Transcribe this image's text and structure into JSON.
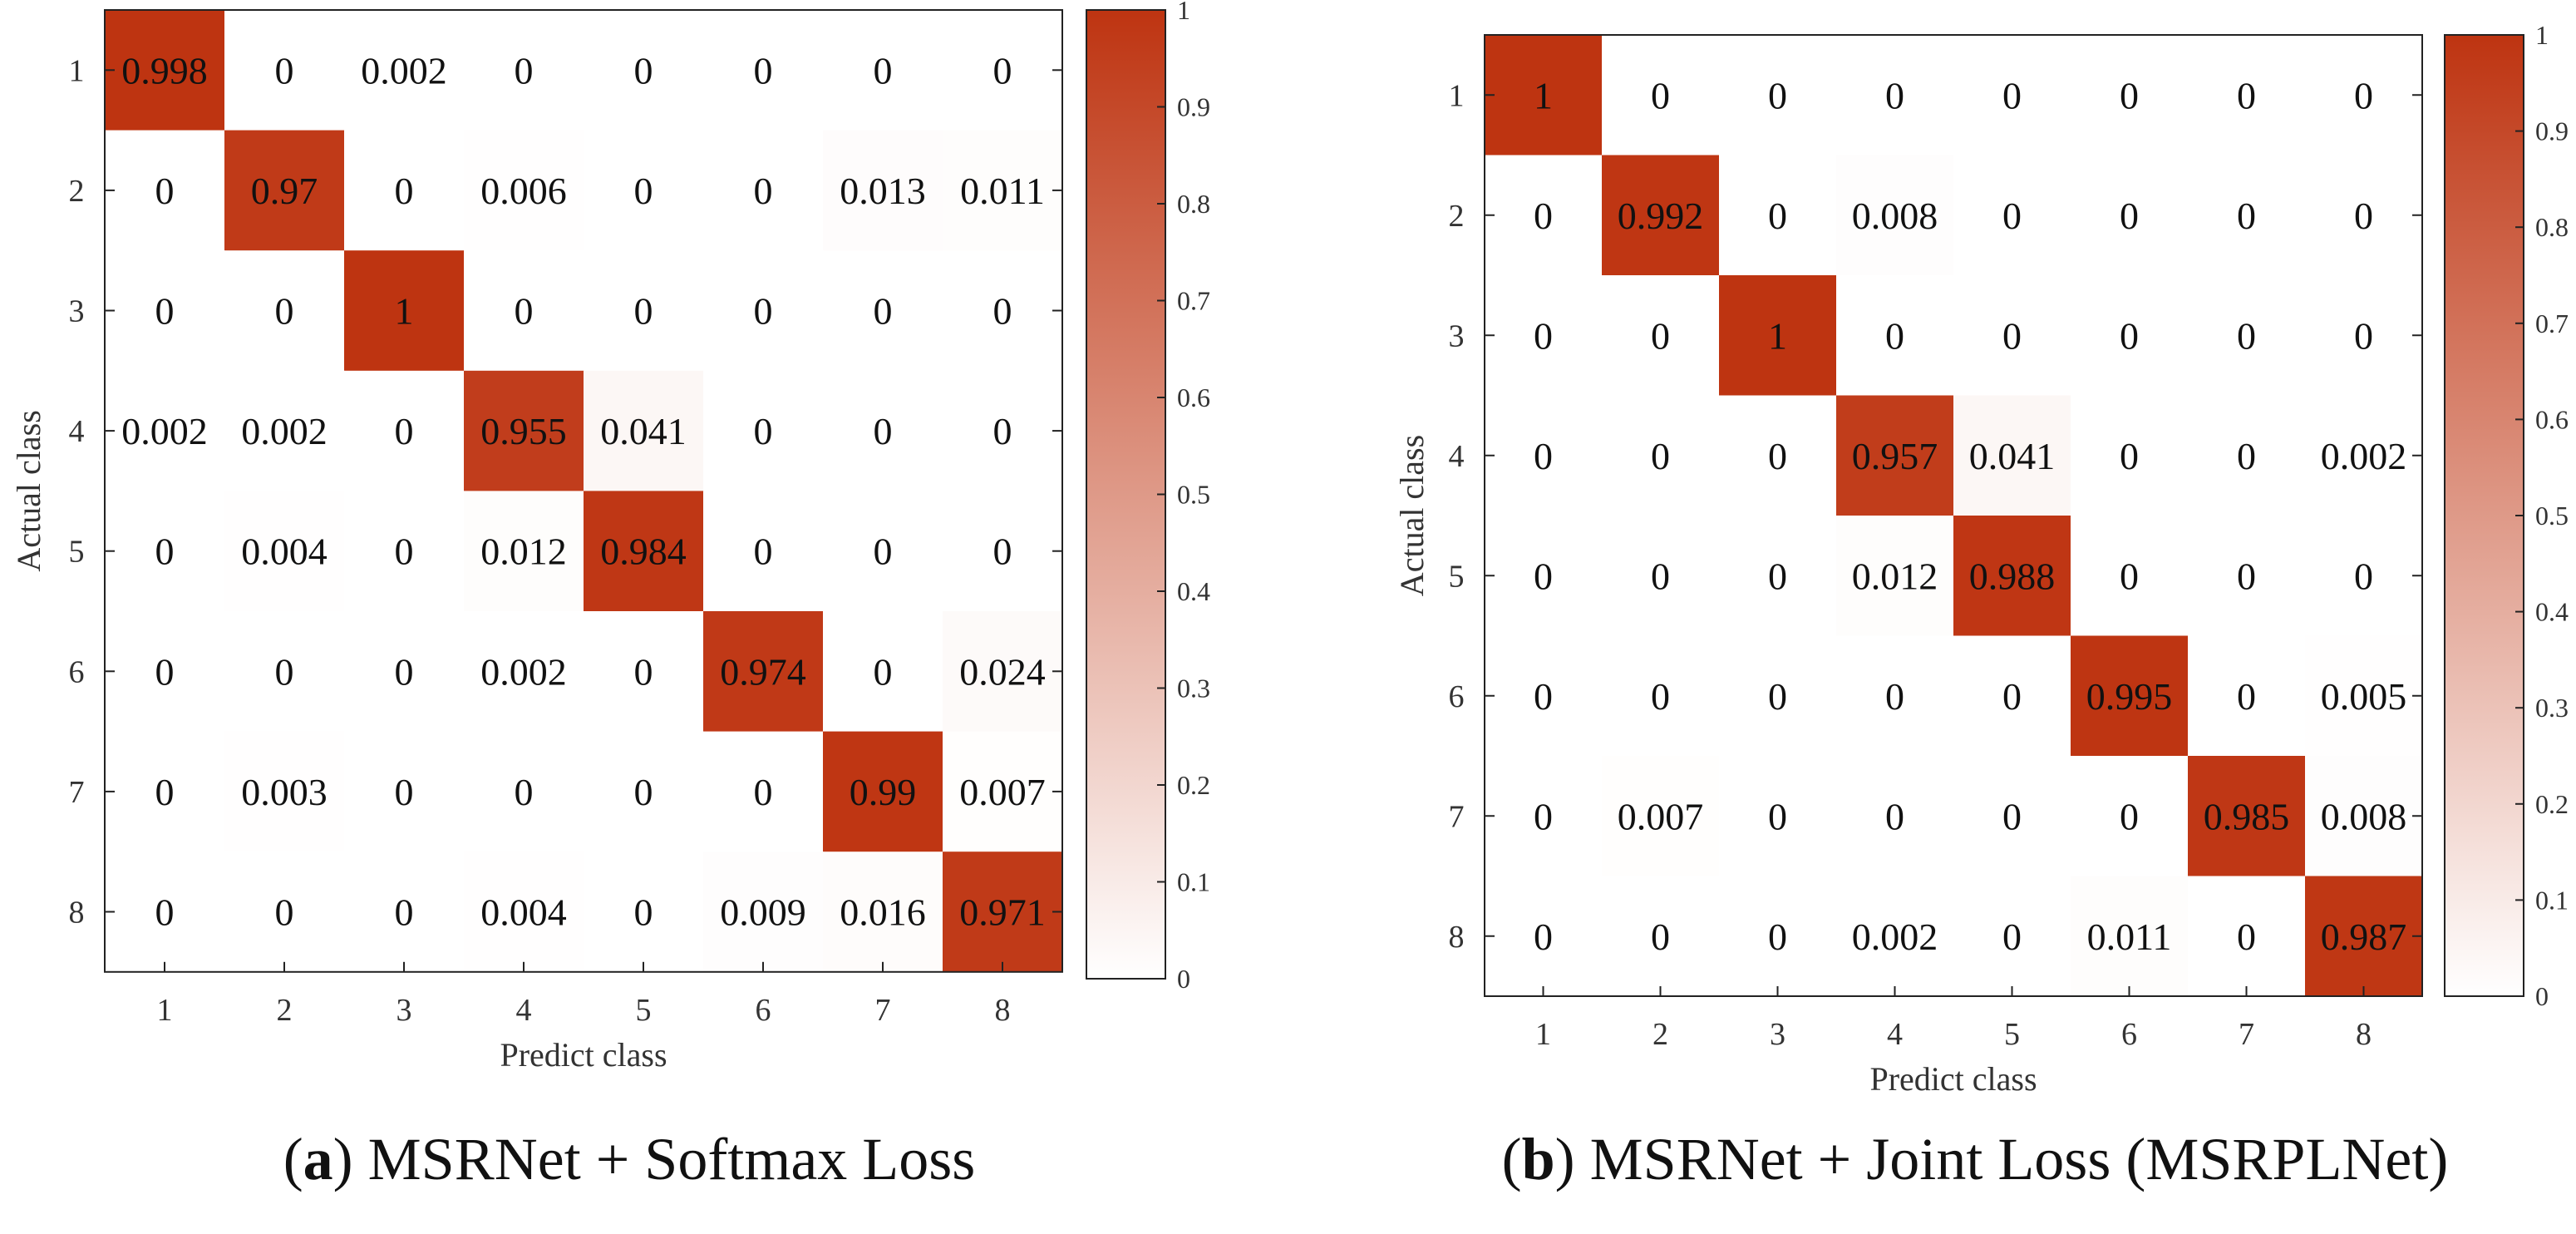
{
  "colors": {
    "high": "#be3411",
    "low": "#ffffff",
    "frame": "#222222",
    "text": "#111111"
  },
  "chart_data": [
    {
      "type": "heatmap",
      "title": "",
      "xlabel": "Predict class",
      "ylabel": "Actual class",
      "x_ticks": [
        "1",
        "2",
        "3",
        "4",
        "5",
        "6",
        "7",
        "8"
      ],
      "y_ticks": [
        "1",
        "2",
        "3",
        "4",
        "5",
        "6",
        "7",
        "8"
      ],
      "values": [
        [
          "0.998",
          "0",
          "0.002",
          "0",
          "0",
          "0",
          "0",
          "0"
        ],
        [
          "0",
          "0.97",
          "0",
          "0.006",
          "0",
          "0",
          "0.013",
          "0.011"
        ],
        [
          "0",
          "0",
          "1",
          "0",
          "0",
          "0",
          "0",
          "0"
        ],
        [
          "0.002",
          "0.002",
          "0",
          "0.955",
          "0.041",
          "0",
          "0",
          "0"
        ],
        [
          "0",
          "0.004",
          "0",
          "0.012",
          "0.984",
          "0",
          "0",
          "0"
        ],
        [
          "0",
          "0",
          "0",
          "0.002",
          "0",
          "0.974",
          "0",
          "0.024"
        ],
        [
          "0",
          "0.003",
          "0",
          "0",
          "0",
          "0",
          "0.99",
          "0.007"
        ],
        [
          "0",
          "0",
          "0",
          "0.004",
          "0",
          "0.009",
          "0.016",
          "0.971"
        ]
      ],
      "colorbar": {
        "ticks": [
          "0",
          "0.1",
          "0.2",
          "0.3",
          "0.4",
          "0.5",
          "0.6",
          "0.7",
          "0.8",
          "0.9",
          "1"
        ],
        "range": [
          0,
          1
        ]
      },
      "caption": {
        "label": "a",
        "text": "MSRNet + Softmax Loss"
      }
    },
    {
      "type": "heatmap",
      "title": "",
      "xlabel": "Predict class",
      "ylabel": "Actual class",
      "x_ticks": [
        "1",
        "2",
        "3",
        "4",
        "5",
        "6",
        "7",
        "8"
      ],
      "y_ticks": [
        "1",
        "2",
        "3",
        "4",
        "5",
        "6",
        "7",
        "8"
      ],
      "values": [
        [
          "1",
          "0",
          "0",
          "0",
          "0",
          "0",
          "0",
          "0"
        ],
        [
          "0",
          "0.992",
          "0",
          "0.008",
          "0",
          "0",
          "0",
          "0"
        ],
        [
          "0",
          "0",
          "1",
          "0",
          "0",
          "0",
          "0",
          "0"
        ],
        [
          "0",
          "0",
          "0",
          "0.957",
          "0.041",
          "0",
          "0",
          "0.002"
        ],
        [
          "0",
          "0",
          "0",
          "0.012",
          "0.988",
          "0",
          "0",
          "0"
        ],
        [
          "0",
          "0",
          "0",
          "0",
          "0",
          "0.995",
          "0",
          "0.005"
        ],
        [
          "0",
          "0.007",
          "0",
          "0",
          "0",
          "0",
          "0.985",
          "0.008"
        ],
        [
          "0",
          "0",
          "0",
          "0.002",
          "0",
          "0.011",
          "0",
          "0.987"
        ]
      ],
      "colorbar": {
        "ticks": [
          "0",
          "0.1",
          "0.2",
          "0.3",
          "0.4",
          "0.5",
          "0.6",
          "0.7",
          "0.8",
          "0.9",
          "1"
        ],
        "range": [
          0,
          1
        ]
      },
      "caption": {
        "label": "b",
        "text": "MSRNet + Joint Loss (MSRPLNet)"
      }
    }
  ]
}
